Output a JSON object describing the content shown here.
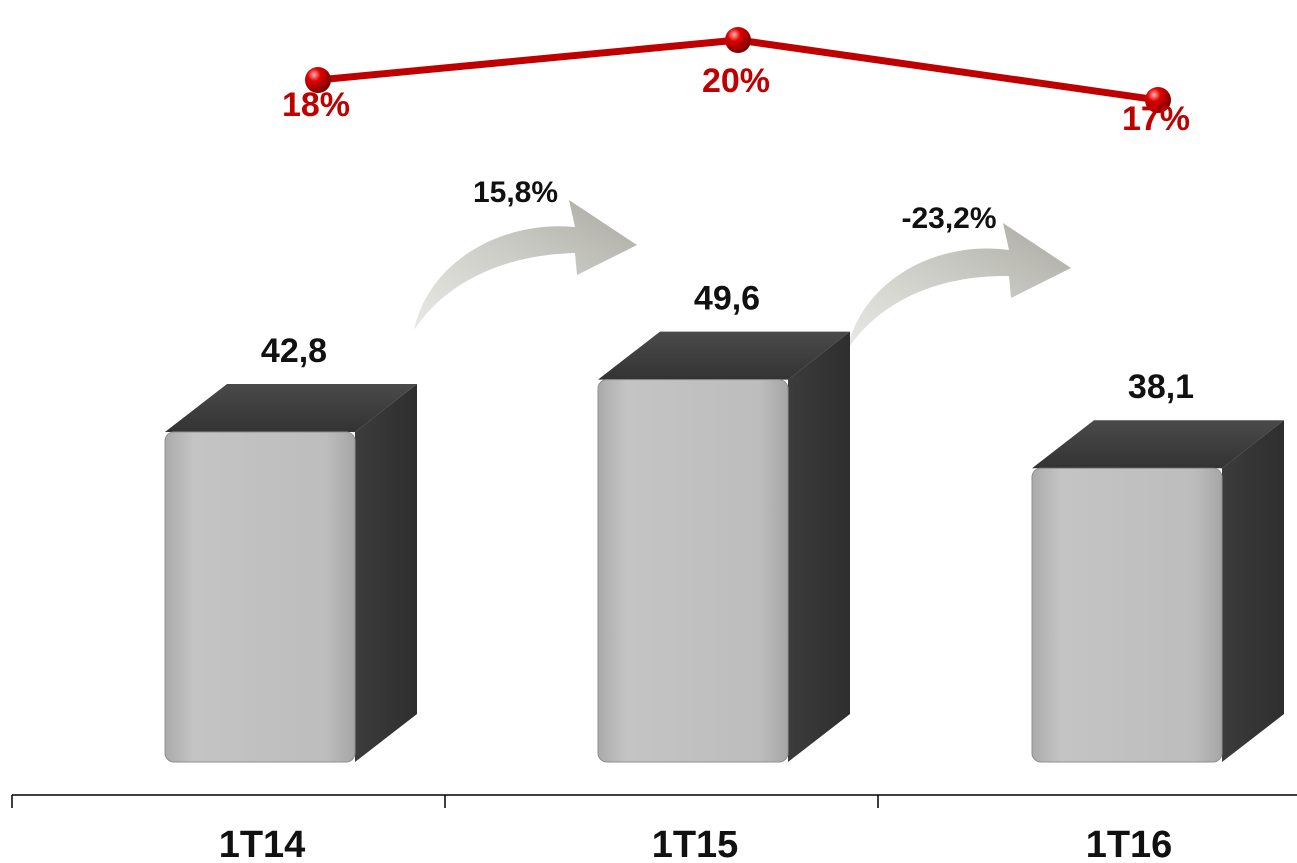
{
  "chart_data": [
    {
      "type": "bar",
      "categories": [
        "1T14",
        "1T15",
        "1T16"
      ],
      "values": [
        42.8,
        49.6,
        38.1
      ],
      "value_labels": [
        "42,8",
        "49,6",
        "38,1"
      ],
      "growth": [
        {
          "from": "1T14",
          "to": "1T15",
          "label": "15,8%"
        },
        {
          "from": "1T15",
          "to": "1T16",
          "label": "-23,2%"
        }
      ],
      "bar_color": "#bdbdbd",
      "bar_side_color": "#3a3a3a",
      "title": "",
      "xlabel": "",
      "ylabel": ""
    },
    {
      "type": "line",
      "categories": [
        "1T14",
        "1T15",
        "1T16"
      ],
      "values": [
        18,
        20,
        17
      ],
      "value_labels": [
        "18%",
        "20%",
        "17%"
      ],
      "line_color": "#c00000",
      "ylim": [
        16,
        21
      ]
    }
  ],
  "arrow_color": "#b5b5ad"
}
